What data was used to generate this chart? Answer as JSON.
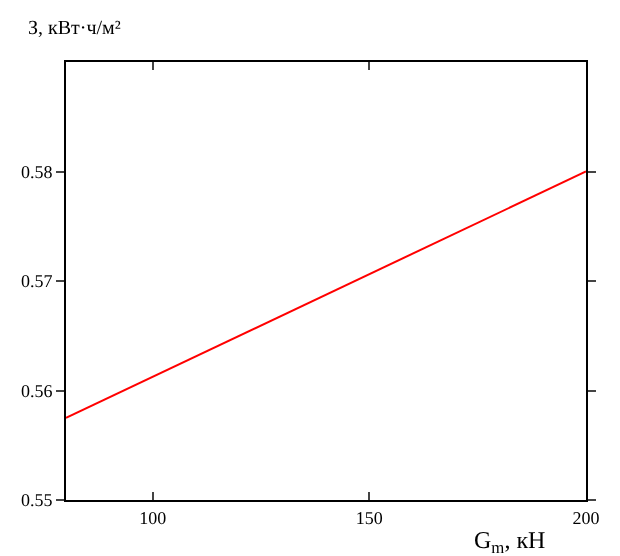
{
  "chart_data": {
    "type": "line",
    "ylabel": "З, кВт·ч/м²",
    "xlabel": "G$_{m}$, кН",
    "x": [
      80,
      200
    ],
    "series": [
      {
        "color": "#ff0000",
        "values": [
          0.5575,
          0.58
        ]
      }
    ],
    "xlim": [
      80,
      200
    ],
    "xticks": [
      100,
      150,
      200
    ],
    "ylim": [
      0.55,
      0.59
    ],
    "yticks": [
      0.55,
      0.56,
      0.57,
      0.58
    ],
    "legend": false
  }
}
